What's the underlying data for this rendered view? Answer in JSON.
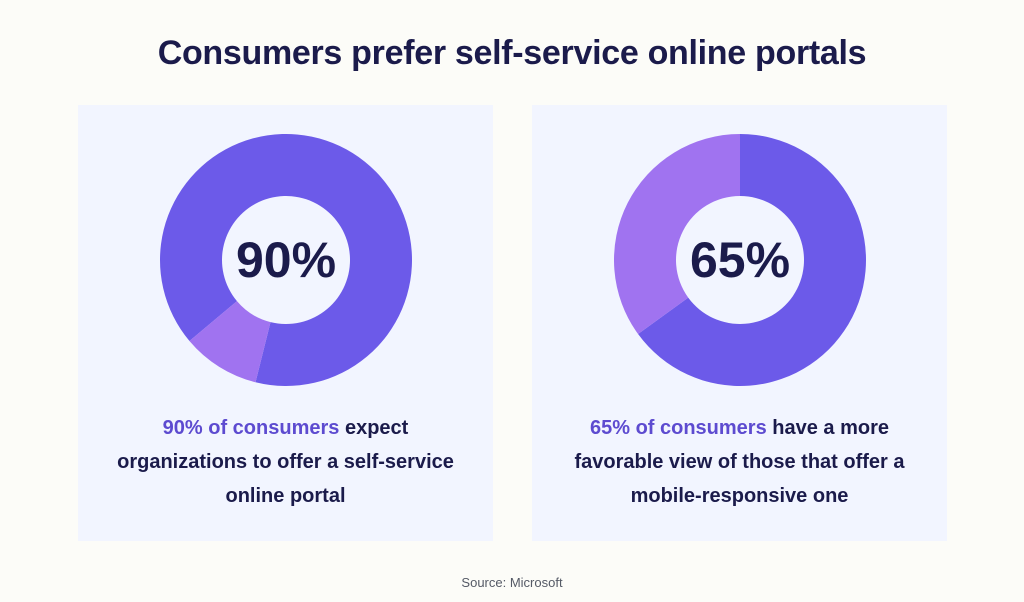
{
  "title": "Consumers prefer self-service online portals",
  "source": "Source: Microsoft",
  "colors": {
    "primary": "#6c5ae9",
    "secondary": "#a073f0",
    "text": "#1b1b4b",
    "highlight": "#5d4bd0",
    "card_bg": "#f2f5ff"
  },
  "chart_data": [
    {
      "type": "pie",
      "center_label": "90%",
      "values": [
        90,
        10
      ],
      "caption": {
        "highlight": "90% of consumers",
        "rest": " expect organizations to offer a self-service online portal"
      }
    },
    {
      "type": "pie",
      "center_label": "65%",
      "values": [
        65,
        35
      ],
      "caption": {
        "highlight": "65% of consumers",
        "rest": " have a more favorable view of those that offer a mobile-responsive one"
      }
    }
  ]
}
